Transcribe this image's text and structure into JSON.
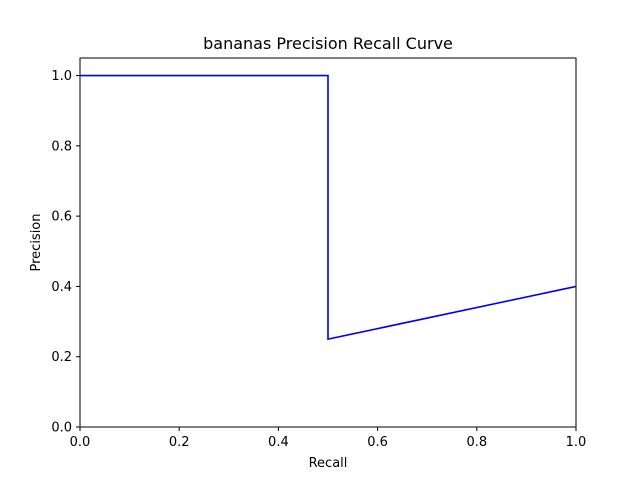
{
  "chart_data": {
    "type": "line",
    "title": "bananas Precision Recall Curve",
    "xlabel": "Recall",
    "ylabel": "Precision",
    "xlim": [
      0.0,
      1.0
    ],
    "ylim": [
      0.0,
      1.05
    ],
    "xticks": [
      0.0,
      0.2,
      0.4,
      0.6,
      0.8,
      1.0
    ],
    "xtick_labels": [
      "0.0",
      "0.2",
      "0.4",
      "0.6",
      "0.8",
      "1.0"
    ],
    "yticks": [
      0.0,
      0.2,
      0.4,
      0.6,
      0.8,
      1.0
    ],
    "ytick_labels": [
      "0.0",
      "0.2",
      "0.4",
      "0.6",
      "0.8",
      "1.0"
    ],
    "grid": false,
    "series": [
      {
        "color": "#0000ff",
        "x": [
          0.0,
          0.5,
          0.5,
          1.0
        ],
        "y": [
          1.0,
          1.0,
          0.25,
          0.4
        ]
      }
    ]
  }
}
